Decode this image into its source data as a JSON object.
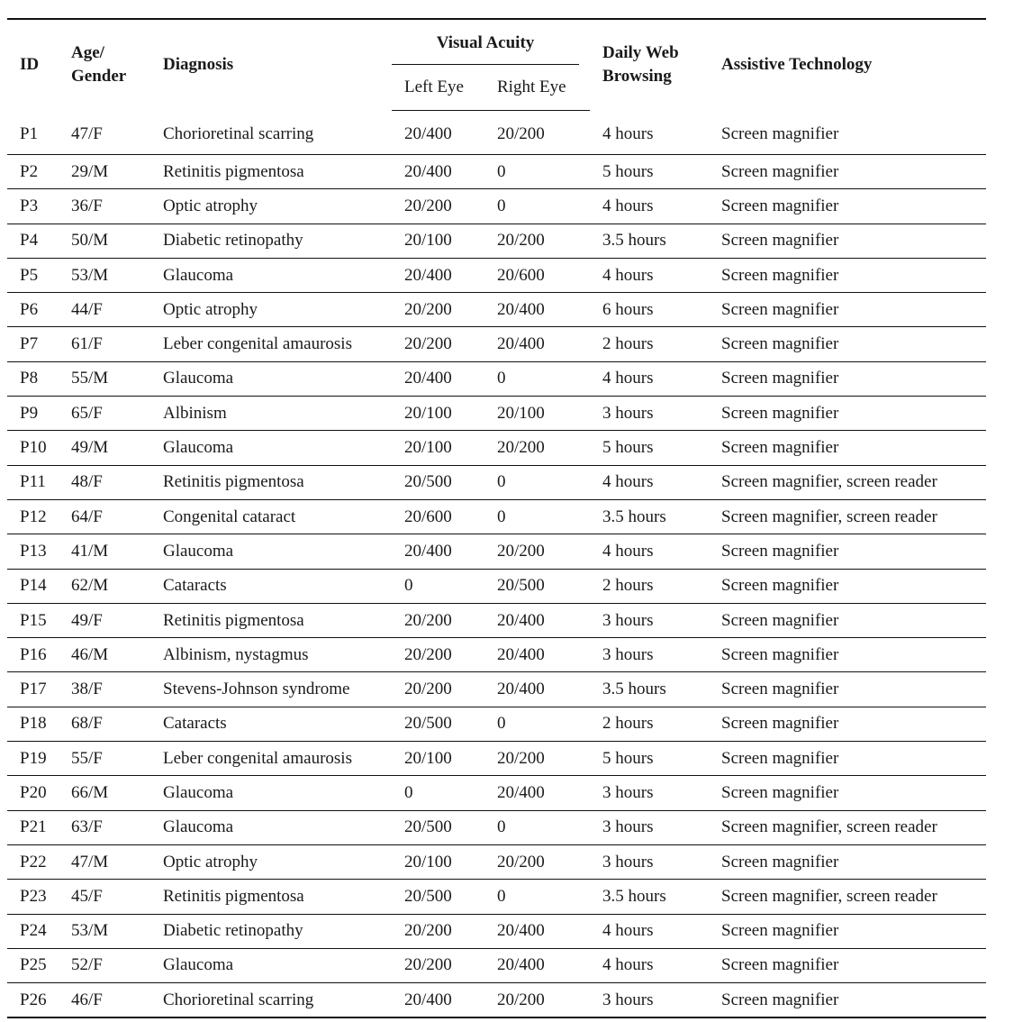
{
  "headers": {
    "id": "ID",
    "age_gender": "Age/ Gender",
    "diagnosis": "Diagnosis",
    "visual_acuity": "Visual Acuity",
    "left_eye": "Left Eye",
    "right_eye": "Right Eye",
    "daily_web": "Daily Web Browsing",
    "assistive": "Assistive Technology"
  },
  "rows": [
    {
      "id": "P1",
      "age_gender": "47/F",
      "diagnosis": "Chorioretinal scarring",
      "left": "20/400",
      "right": "20/200",
      "web": "4 hours",
      "at": "Screen magnifier"
    },
    {
      "id": "P2",
      "age_gender": "29/M",
      "diagnosis": "Retinitis pigmentosa",
      "left": "20/400",
      "right": "0",
      "web": "5 hours",
      "at": "Screen magnifier"
    },
    {
      "id": "P3",
      "age_gender": "36/F",
      "diagnosis": "Optic atrophy",
      "left": "20/200",
      "right": "0",
      "web": "4 hours",
      "at": "Screen magnifier"
    },
    {
      "id": "P4",
      "age_gender": "50/M",
      "diagnosis": "Diabetic retinopathy",
      "left": "20/100",
      "right": "20/200",
      "web": "3.5 hours",
      "at": "Screen magnifier"
    },
    {
      "id": "P5",
      "age_gender": "53/M",
      "diagnosis": "Glaucoma",
      "left": "20/400",
      "right": "20/600",
      "web": "4 hours",
      "at": "Screen magnifier"
    },
    {
      "id": "P6",
      "age_gender": "44/F",
      "diagnosis": "Optic atrophy",
      "left": "20/200",
      "right": "20/400",
      "web": "6 hours",
      "at": "Screen magnifier"
    },
    {
      "id": "P7",
      "age_gender": "61/F",
      "diagnosis": "Leber congenital amaurosis",
      "left": "20/200",
      "right": "20/400",
      "web": "2 hours",
      "at": "Screen magnifier"
    },
    {
      "id": "P8",
      "age_gender": "55/M",
      "diagnosis": "Glaucoma",
      "left": "20/400",
      "right": "0",
      "web": "4 hours",
      "at": "Screen magnifier"
    },
    {
      "id": "P9",
      "age_gender": "65/F",
      "diagnosis": "Albinism",
      "left": "20/100",
      "right": "20/100",
      "web": "3 hours",
      "at": "Screen magnifier"
    },
    {
      "id": "P10",
      "age_gender": "49/M",
      "diagnosis": "Glaucoma",
      "left": "20/100",
      "right": "20/200",
      "web": "5 hours",
      "at": "Screen magnifier"
    },
    {
      "id": "P11",
      "age_gender": "48/F",
      "diagnosis": "Retinitis pigmentosa",
      "left": "20/500",
      "right": "0",
      "web": "4 hours",
      "at": "Screen magnifier, screen reader"
    },
    {
      "id": "P12",
      "age_gender": "64/F",
      "diagnosis": "Congenital cataract",
      "left": "20/600",
      "right": "0",
      "web": "3.5 hours",
      "at": "Screen magnifier, screen reader"
    },
    {
      "id": "P13",
      "age_gender": "41/M",
      "diagnosis": "Glaucoma",
      "left": "20/400",
      "right": "20/200",
      "web": "4 hours",
      "at": "Screen magnifier"
    },
    {
      "id": "P14",
      "age_gender": "62/M",
      "diagnosis": "Cataracts",
      "left": "0",
      "right": "20/500",
      "web": "2 hours",
      "at": "Screen magnifier"
    },
    {
      "id": "P15",
      "age_gender": "49/F",
      "diagnosis": "Retinitis pigmentosa",
      "left": "20/200",
      "right": "20/400",
      "web": "3 hours",
      "at": "Screen magnifier"
    },
    {
      "id": "P16",
      "age_gender": "46/M",
      "diagnosis": "Albinism, nystagmus",
      "left": "20/200",
      "right": "20/400",
      "web": "3 hours",
      "at": "Screen magnifier"
    },
    {
      "id": "P17",
      "age_gender": "38/F",
      "diagnosis": "Stevens-Johnson syndrome",
      "left": "20/200",
      "right": "20/400",
      "web": "3.5 hours",
      "at": "Screen magnifier"
    },
    {
      "id": "P18",
      "age_gender": "68/F",
      "diagnosis": "Cataracts",
      "left": "20/500",
      "right": "0",
      "web": "2 hours",
      "at": "Screen magnifier"
    },
    {
      "id": "P19",
      "age_gender": "55/F",
      "diagnosis": "Leber congenital amaurosis",
      "left": "20/100",
      "right": "20/200",
      "web": "5 hours",
      "at": "Screen magnifier"
    },
    {
      "id": "P20",
      "age_gender": "66/M",
      "diagnosis": "Glaucoma",
      "left": "0",
      "right": "20/400",
      "web": "3 hours",
      "at": "Screen magnifier"
    },
    {
      "id": "P21",
      "age_gender": "63/F",
      "diagnosis": "Glaucoma",
      "left": "20/500",
      "right": "0",
      "web": "3 hours",
      "at": "Screen magnifier, screen reader"
    },
    {
      "id": "P22",
      "age_gender": "47/M",
      "diagnosis": "Optic atrophy",
      "left": "20/100",
      "right": "20/200",
      "web": "3 hours",
      "at": "Screen magnifier"
    },
    {
      "id": "P23",
      "age_gender": "45/F",
      "diagnosis": "Retinitis pigmentosa",
      "left": "20/500",
      "right": "0",
      "web": "3.5 hours",
      "at": "Screen magnifier, screen reader"
    },
    {
      "id": "P24",
      "age_gender": "53/M",
      "diagnosis": "Diabetic retinopathy",
      "left": "20/200",
      "right": "20/400",
      "web": "4 hours",
      "at": "Screen magnifier"
    },
    {
      "id": "P25",
      "age_gender": "52/F",
      "diagnosis": "Glaucoma",
      "left": "20/200",
      "right": "20/400",
      "web": "4 hours",
      "at": "Screen magnifier"
    },
    {
      "id": "P26",
      "age_gender": "46/F",
      "diagnosis": "Chorioretinal scarring",
      "left": "20/400",
      "right": "20/200",
      "web": "3 hours",
      "at": "Screen magnifier"
    }
  ]
}
